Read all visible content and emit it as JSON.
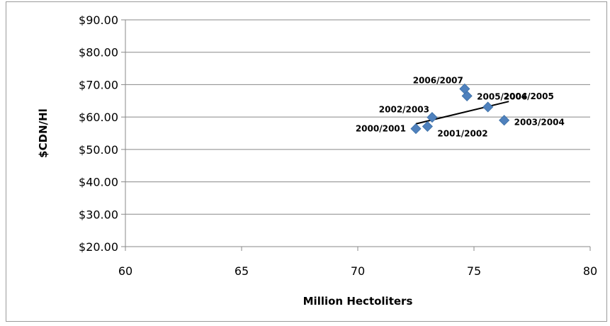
{
  "chart_data": {
    "type": "scatter",
    "title": "",
    "xlabel": "Million Hectoliters",
    "ylabel": "$CDN/Hl",
    "xlim": [
      60,
      80
    ],
    "ylim": [
      20,
      90
    ],
    "x_ticks": [
      60,
      65,
      70,
      75,
      80
    ],
    "y_ticks": [
      20,
      30,
      40,
      50,
      60,
      70,
      80,
      90
    ],
    "x_tick_labels": [
      "60",
      "65",
      "70",
      "75",
      "80"
    ],
    "y_tick_labels": [
      "$20.00",
      "$30.00",
      "$40.00",
      "$50.00",
      "$60.00",
      "$70.00",
      "$80.00",
      "$90.00"
    ],
    "grid": "horizontal",
    "legend": "none",
    "marker_color": "#4f81bd",
    "trendline": {
      "type": "linear",
      "x": [
        72.5,
        76.5
      ],
      "y": [
        57.9,
        64.8
      ],
      "color": "#000000"
    },
    "points": [
      {
        "x": 72.5,
        "y": 56.4,
        "label": "2000/2001"
      },
      {
        "x": 73.0,
        "y": 57.1,
        "label": "2001/2002"
      },
      {
        "x": 73.2,
        "y": 59.9,
        "label": "2002/2003"
      },
      {
        "x": 76.3,
        "y": 59.0,
        "label": "2003/2004"
      },
      {
        "x": 75.6,
        "y": 63.1,
        "label": "2004/2005"
      },
      {
        "x": 74.7,
        "y": 66.5,
        "label": "2005/2006"
      },
      {
        "x": 74.6,
        "y": 68.7,
        "label": "2006/2007"
      }
    ]
  }
}
